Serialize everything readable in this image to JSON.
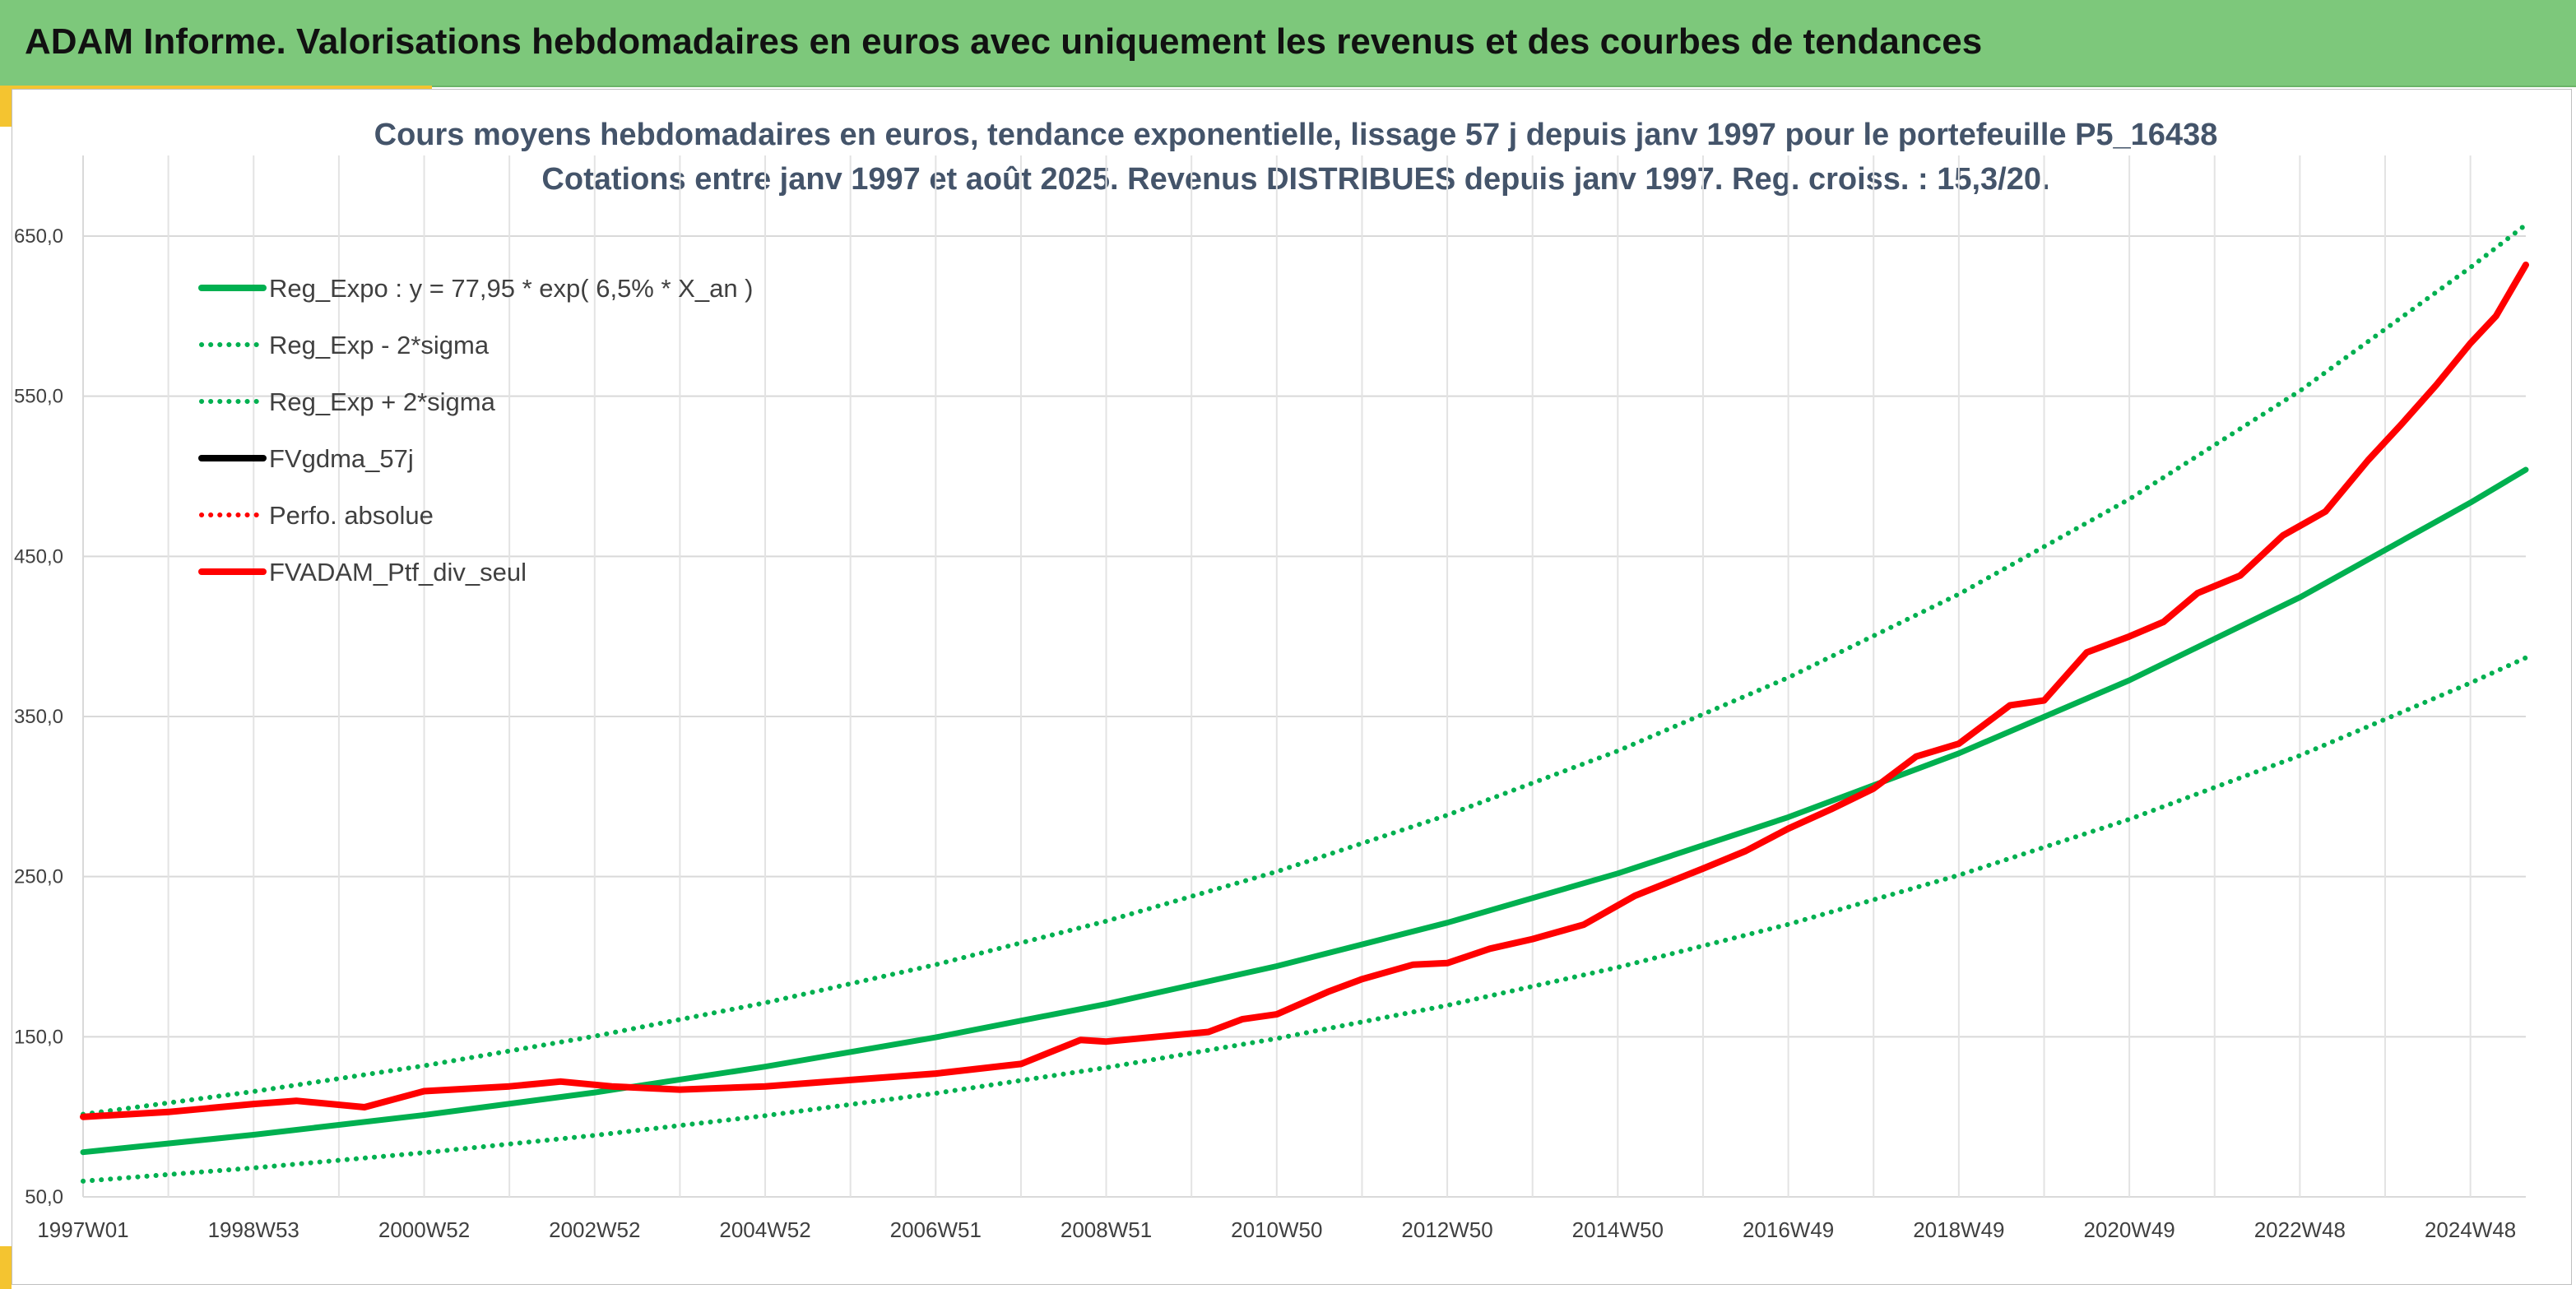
{
  "header": {
    "title": "ADAM Informe. Valorisations hebdomadaires en euros avec uniquement les revenus et des courbes de tendances",
    "background": "#7dc87b",
    "accent": "#f4c430"
  },
  "chart_data": {
    "type": "line",
    "title": "Cours moyens hebdomadaires en euros, tendance exponentielle, lissage 57 j depuis janv 1997 pour le portefeuille P5_16438",
    "subtitle": "Cotations entre janv 1997 et août 2025. Revenus DISTRIBUES depuis janv 1997. Reg. croiss. : 15,3/20.",
    "xlabel": "",
    "ylabel": "",
    "x_range": [
      1997.0,
      2025.65
    ],
    "ylim": [
      50,
      700
    ],
    "y_ticks": [
      "50,0",
      "150,0",
      "250,0",
      "350,0",
      "450,0",
      "550,0",
      "650,0"
    ],
    "x_ticks": [
      "1997W01",
      "1998W53",
      "2000W52",
      "2002W52",
      "2004W52",
      "2006W51",
      "2008W51",
      "2010W50",
      "2012W50",
      "2014W50",
      "2016W49",
      "2018W49",
      "2020W49",
      "2022W48",
      "2024W48"
    ],
    "x_tick_years": [
      1997.0,
      1999.0,
      2001.0,
      2003.0,
      2005.0,
      2007.0,
      2009.0,
      2011.0,
      2013.0,
      2015.0,
      2017.0,
      2019.0,
      2021.0,
      2023.0,
      2025.0
    ],
    "grid": true,
    "legend_position": "top-left",
    "series": [
      {
        "name": "Reg_Expo : y = 77,95 * exp( 6,5% *  X_an )",
        "style": "solid",
        "color": "#00b050",
        "width": 7,
        "x": [
          1997.0,
          1999.0,
          2001.0,
          2003.0,
          2005.0,
          2007.0,
          2009.0,
          2011.0,
          2013.0,
          2015.0,
          2017.0,
          2019.0,
          2021.0,
          2023.0,
          2025.0,
          2025.65
        ],
        "values": [
          77.9,
          88.8,
          101.1,
          115.2,
          131.3,
          149.6,
          170.4,
          194.1,
          221.2,
          252.0,
          287.1,
          327.0,
          372.6,
          424.4,
          483.5,
          504.1
        ]
      },
      {
        "name": "Reg_Exp - 2*sigma",
        "style": "dotted",
        "color": "#00b050",
        "width": 6,
        "x": [
          1997.0,
          1999.0,
          2001.0,
          2003.0,
          2005.0,
          2007.0,
          2009.0,
          2011.0,
          2013.0,
          2015.0,
          2017.0,
          2019.0,
          2021.0,
          2023.0,
          2025.0,
          2025.65
        ],
        "values": [
          59.8,
          68.1,
          77.6,
          88.4,
          100.7,
          114.7,
          130.7,
          148.9,
          169.6,
          193.3,
          220.2,
          250.9,
          285.8,
          325.6,
          370.9,
          386.7
        ]
      },
      {
        "name": "Reg_Exp + 2*sigma",
        "style": "dotted",
        "color": "#00b050",
        "width": 6,
        "x": [
          1997.0,
          1999.0,
          2001.0,
          2003.0,
          2005.0,
          2007.0,
          2009.0,
          2011.0,
          2013.0,
          2015.0,
          2017.0,
          2019.0,
          2021.0,
          2023.0,
          2025.0,
          2025.65
        ],
        "values": [
          101.6,
          115.8,
          131.9,
          150.3,
          171.2,
          195.0,
          222.2,
          253.1,
          288.4,
          328.5,
          374.3,
          426.4,
          485.7,
          553.3,
          630.4,
          657.1
        ]
      },
      {
        "name": "FVgdma_57j",
        "style": "solid",
        "color": "#000000",
        "width": 6,
        "x": [
          1997.0,
          1998.0,
          1999.0,
          1999.5,
          2000.3,
          2001.0,
          2002.0,
          2002.6,
          2003.2,
          2004.0,
          2005.0,
          2006.0,
          2007.0,
          2008.0,
          2008.7,
          2009.0,
          2009.6,
          2010.2,
          2010.6,
          2011.0,
          2011.6,
          2012.0,
          2012.6,
          2013.0,
          2013.5,
          2014.0,
          2014.6,
          2015.2,
          2016.0,
          2016.5,
          2017.0,
          2017.5,
          2018.0,
          2018.5,
          2019.0,
          2019.6,
          2020.0,
          2020.5,
          2021.0,
          2021.4,
          2021.8,
          2022.3,
          2022.8,
          2023.3,
          2023.8,
          2024.2,
          2024.6,
          2025.0,
          2025.3,
          2025.65
        ],
        "values": [
          100.0,
          103.0,
          108.0,
          110.0,
          106.0,
          116.0,
          119.0,
          122.0,
          119.0,
          117.0,
          119.0,
          123.0,
          127.0,
          133.0,
          148.0,
          147.0,
          150.0,
          153.0,
          161.0,
          164.0,
          178.0,
          186.0,
          195.0,
          196.0,
          205.0,
          211.0,
          220.0,
          238.0,
          255.0,
          266.0,
          280.0,
          292.0,
          305.0,
          325.0,
          333.0,
          357.0,
          360.0,
          390.0,
          400.0,
          409.0,
          427.0,
          438.0,
          463.0,
          478.0,
          510.0,
          533.0,
          557.0,
          583.0,
          600.0,
          632.0
        ]
      },
      {
        "name": "Perfo. absolue",
        "style": "dotted",
        "color": "#ff0000",
        "width": 6,
        "x": [
          1997.0,
          1998.0,
          1999.0,
          1999.5,
          2000.3,
          2001.0,
          2002.0,
          2002.6,
          2003.2,
          2004.0,
          2005.0,
          2006.0,
          2007.0,
          2008.0,
          2008.7,
          2009.0,
          2009.6,
          2010.2,
          2010.6,
          2011.0,
          2011.6,
          2012.0,
          2012.6,
          2013.0,
          2013.5,
          2014.0,
          2014.6,
          2015.2,
          2016.0,
          2016.5,
          2017.0,
          2017.5,
          2018.0,
          2018.5,
          2019.0,
          2019.6,
          2020.0,
          2020.5,
          2021.0,
          2021.4,
          2021.8,
          2022.3,
          2022.8,
          2023.3,
          2023.8,
          2024.2,
          2024.6,
          2025.0,
          2025.3,
          2025.65
        ],
        "values": [
          100.0,
          103.0,
          108.0,
          110.0,
          106.0,
          116.0,
          119.0,
          122.0,
          119.0,
          117.0,
          119.0,
          123.0,
          127.0,
          133.0,
          148.0,
          147.0,
          150.0,
          153.0,
          161.0,
          164.0,
          178.0,
          186.0,
          195.0,
          196.0,
          205.0,
          211.0,
          220.0,
          238.0,
          255.0,
          266.0,
          280.0,
          292.0,
          305.0,
          325.0,
          333.0,
          357.0,
          360.0,
          390.0,
          400.0,
          409.0,
          427.0,
          438.0,
          463.0,
          478.0,
          510.0,
          533.0,
          557.0,
          583.0,
          600.0,
          632.0
        ]
      },
      {
        "name": "FVADAM_Ptf_div_seul",
        "style": "solid",
        "color": "#ff0000",
        "width": 8,
        "x": [
          1997.0,
          1998.0,
          1999.0,
          1999.5,
          2000.3,
          2001.0,
          2002.0,
          2002.6,
          2003.2,
          2004.0,
          2005.0,
          2006.0,
          2007.0,
          2008.0,
          2008.7,
          2009.0,
          2009.6,
          2010.2,
          2010.6,
          2011.0,
          2011.6,
          2012.0,
          2012.6,
          2013.0,
          2013.5,
          2014.0,
          2014.6,
          2015.2,
          2016.0,
          2016.5,
          2017.0,
          2017.5,
          2018.0,
          2018.5,
          2019.0,
          2019.6,
          2020.0,
          2020.5,
          2021.0,
          2021.4,
          2021.8,
          2022.3,
          2022.8,
          2023.3,
          2023.8,
          2024.2,
          2024.6,
          2025.0,
          2025.3,
          2025.65
        ],
        "values": [
          100.0,
          103.0,
          108.0,
          110.0,
          106.0,
          116.0,
          119.0,
          122.0,
          119.0,
          117.0,
          119.0,
          123.0,
          127.0,
          133.0,
          148.0,
          147.0,
          150.0,
          153.0,
          161.0,
          164.0,
          178.0,
          186.0,
          195.0,
          196.0,
          205.0,
          211.0,
          220.0,
          238.0,
          255.0,
          266.0,
          280.0,
          292.0,
          305.0,
          325.0,
          333.0,
          357.0,
          360.0,
          390.0,
          400.0,
          409.0,
          427.0,
          438.0,
          463.0,
          478.0,
          510.0,
          533.0,
          557.0,
          583.0,
          600.0,
          632.0
        ]
      }
    ]
  }
}
